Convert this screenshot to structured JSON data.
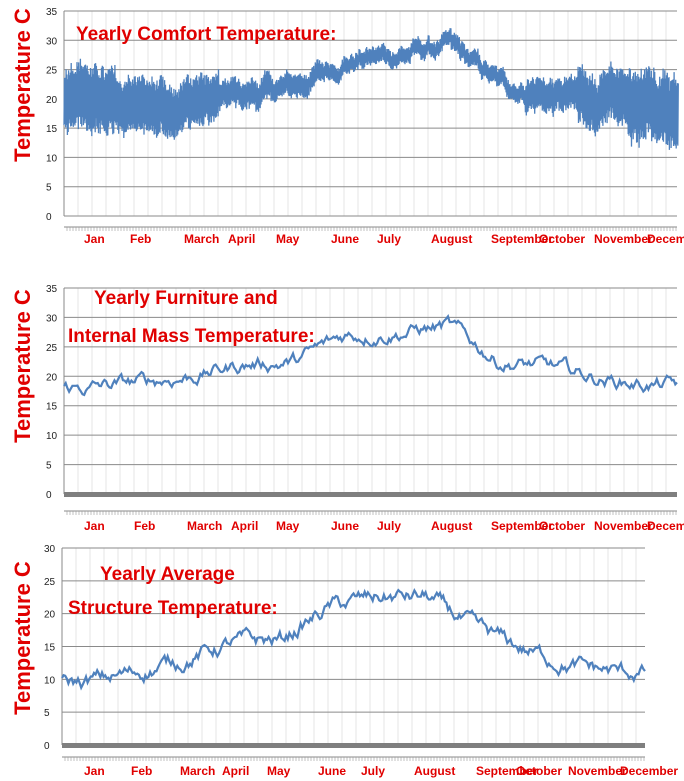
{
  "chart_data": [
    {
      "type": "line",
      "title": "Yearly Comfort Temperature:",
      "ylabel": "Temperature C",
      "ylim": [
        0,
        35
      ],
      "yticks": [
        "0",
        "5",
        "10",
        "15",
        "20",
        "25",
        "30",
        "35"
      ],
      "categories": [
        "Jan",
        "Feb",
        "March",
        "April",
        "May",
        "June",
        "July",
        "August",
        "September",
        "October",
        "November",
        "December"
      ],
      "series": [
        {
          "color": "#4f81bd",
          "values": [
            19.5,
            18.5,
            19.5,
            20.5,
            22.0,
            26.5,
            27.5,
            29.0,
            22.5,
            20.5,
            19.5,
            18.5
          ],
          "daily_band": [
            6,
            5,
            4.5,
            2.5,
            2,
            1.5,
            1.5,
            1.5,
            1.5,
            3,
            5,
            6.5
          ]
        }
      ]
    },
    {
      "type": "line",
      "title": "Yearly Furniture and Internal Mass Temperature:",
      "title_lines": [
        "Yearly Furniture and",
        "Internal Mass Temperature:"
      ],
      "ylabel": "Temperature C",
      "ylim": [
        0,
        35
      ],
      "yticks": [
        "0",
        "5",
        "10",
        "15",
        "20",
        "25",
        "30",
        "35"
      ],
      "categories": [
        "Jan",
        "Feb",
        "March",
        "April",
        "May",
        "June",
        "July",
        "August",
        "September",
        "October",
        "November",
        "December"
      ],
      "series": [
        {
          "color": "#4f81bd",
          "values": [
            18.0,
            19.0,
            20.0,
            22.0,
            22.5,
            27.0,
            27.5,
            28.5,
            22.5,
            21.5,
            19.5,
            18.5
          ]
        }
      ]
    },
    {
      "type": "line",
      "title": "Yearly Average Structure Temperature:",
      "title_lines": [
        "Yearly Average",
        "Structure Temperature:"
      ],
      "ylabel": "Temperature C",
      "ylim": [
        0,
        30
      ],
      "yticks": [
        "0",
        "5",
        "10",
        "15",
        "20",
        "25",
        "30"
      ],
      "categories": [
        "Jan",
        "Feb",
        "March",
        "April",
        "May",
        "June",
        "July",
        "August",
        "September",
        "October",
        "November",
        "December"
      ],
      "series": [
        {
          "color": "#4f81bd",
          "values": [
            9.5,
            11.0,
            13.0,
            15.5,
            16.0,
            21.0,
            22.5,
            22.5,
            17.5,
            14.5,
            12.0,
            11.0
          ]
        }
      ]
    }
  ]
}
